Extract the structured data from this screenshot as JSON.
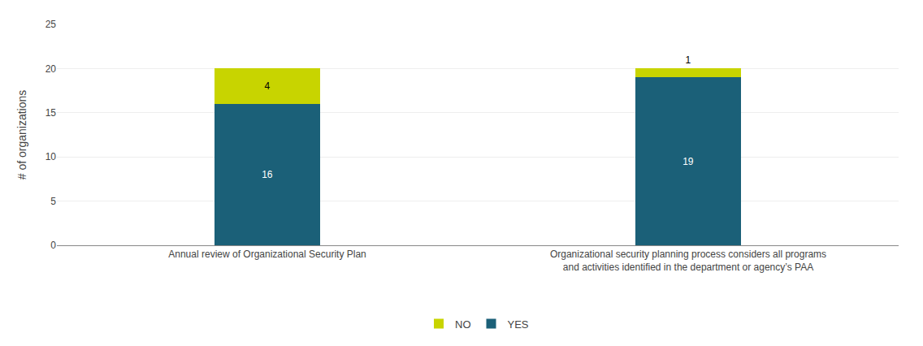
{
  "chart_data": {
    "type": "bar",
    "stacked": true,
    "categories": [
      "Annual review of Organizational Security Plan",
      "Organizational security planning process considers all programs\nand activities identified in the department or agency’s PAA"
    ],
    "series": [
      {
        "name": "YES",
        "color": "#1b6078",
        "values": [
          16,
          19
        ]
      },
      {
        "name": "NO",
        "color": "#c8d400",
        "values": [
          4,
          1
        ]
      }
    ],
    "ylabel": "# of organizations",
    "ylim": [
      0,
      25
    ],
    "yticks": [
      0,
      5,
      10,
      15,
      20,
      25
    ],
    "grid": true,
    "legend": "bottom",
    "data_labels": true
  }
}
